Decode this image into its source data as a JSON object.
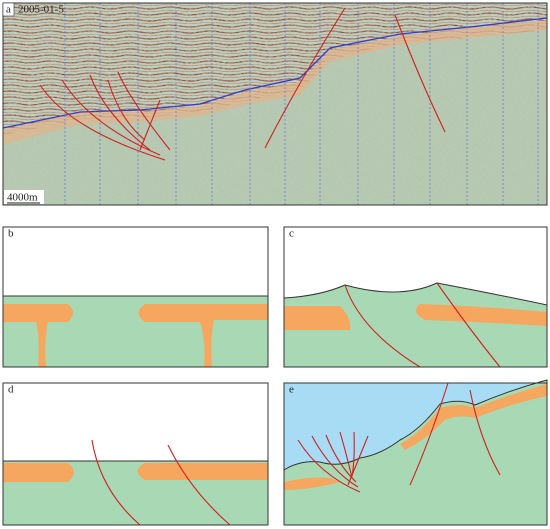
{
  "panels": [
    {
      "label": "a",
      "date": "2005-01-5",
      "scale": "4000m"
    },
    {
      "label": "b"
    },
    {
      "label": "c"
    },
    {
      "label": "d"
    },
    {
      "label": "e"
    }
  ]
}
